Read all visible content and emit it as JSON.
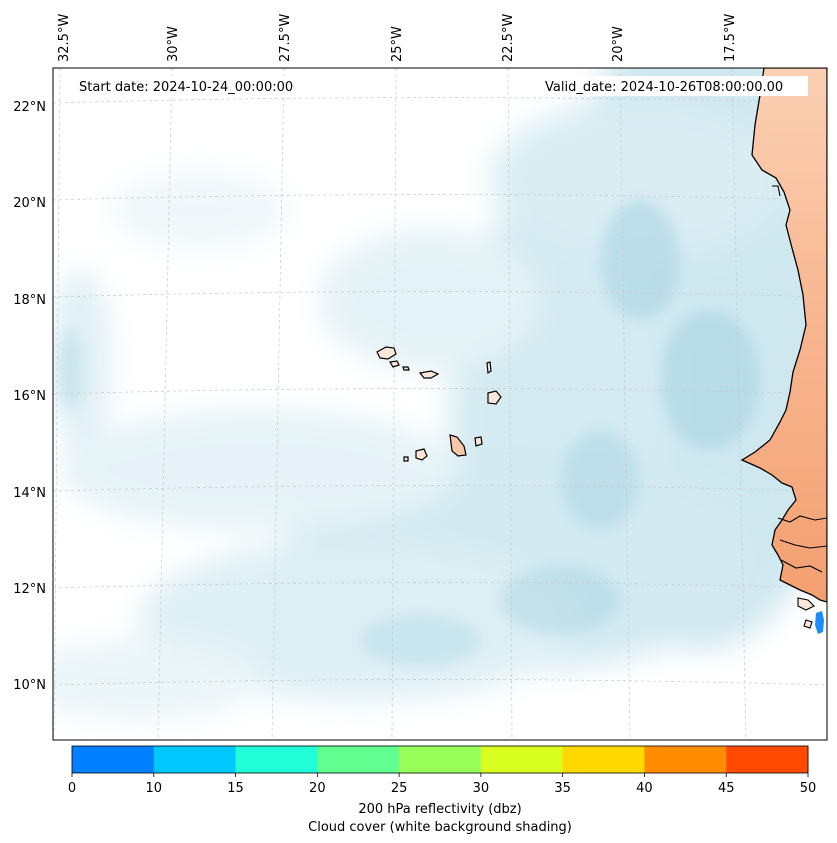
{
  "map": {
    "start_label": "Start date: 2024-10-24_00:00:00",
    "valid_label": "Valid_date: 2024-10-26T08:00:00.00",
    "lon_ticks": [
      "32.5°W",
      "30°W",
      "27.5°W",
      "25°W",
      "22.5°W",
      "20°W",
      "17.5°W"
    ],
    "lat_ticks": [
      "22°N",
      "20°N",
      "18°N",
      "16°N",
      "14°N",
      "12°N",
      "10°N"
    ],
    "gridlines": true,
    "layers": [
      "cloud-cover",
      "reflectivity",
      "coastline",
      "land-surface"
    ]
  },
  "colorbar": {
    "ticks": [
      "0",
      "10",
      "15",
      "20",
      "25",
      "30",
      "35",
      "40",
      "45",
      "50"
    ],
    "colors": [
      "#0080ff",
      "#00c8ff",
      "#20ffd8",
      "#60ff90",
      "#98ff58",
      "#d8ff20",
      "#ffd800",
      "#ff8c00",
      "#ff4a00"
    ],
    "label_line1": "200 hPa reflectivity (dbz)",
    "label_line2": "Cloud cover (white background shading)"
  },
  "colors": {
    "land": "#f6a87c",
    "cloud": "#b7dde8",
    "coast": "#000000",
    "grid": "#bdbdbd"
  }
}
